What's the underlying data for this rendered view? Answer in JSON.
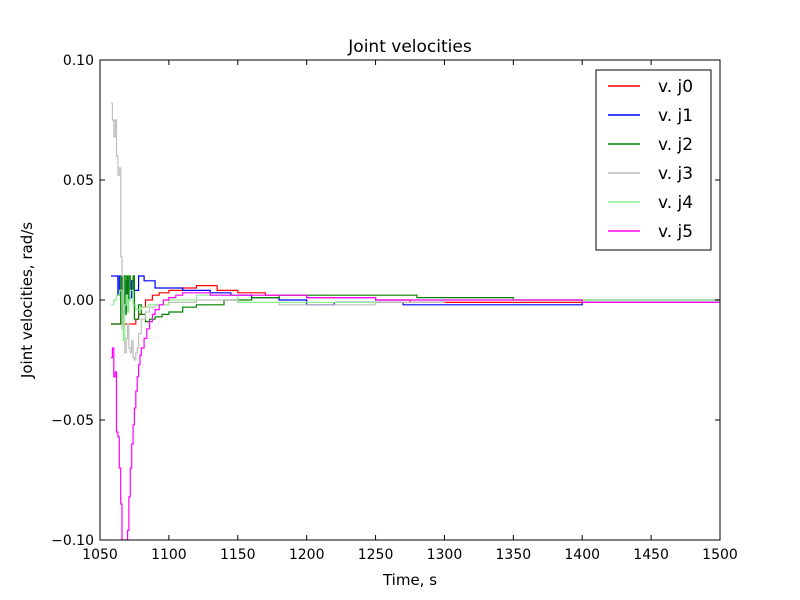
{
  "chart_data": {
    "type": "line",
    "title": "Joint velocities",
    "xlabel": "Time, s",
    "ylabel": "Joint velocities, rad/s",
    "xlim": [
      1050,
      1500
    ],
    "ylim": [
      -0.1,
      0.1
    ],
    "xticks": [
      1050,
      1100,
      1150,
      1200,
      1250,
      1300,
      1350,
      1400,
      1450,
      1500
    ],
    "xtick_labels": [
      "1050",
      "1100",
      "1150",
      "1200",
      "1250",
      "1300",
      "1350",
      "1400",
      "1450",
      "1500"
    ],
    "yticks": [
      -0.1,
      -0.05,
      0.0,
      0.05,
      0.1
    ],
    "ytick_labels": [
      "−0.10",
      "−0.05",
      "0.00",
      "0.05",
      "0.10"
    ],
    "grid": false,
    "legend_position": "top-right",
    "series": [
      {
        "name": "v. j0",
        "color": "#ff0000",
        "x": [
          1058,
          1060,
          1064,
          1066,
          1067,
          1068,
          1074,
          1076,
          1078,
          1080,
          1083,
          1088,
          1093,
          1100,
          1110,
          1120,
          1135,
          1150,
          1170,
          1190,
          1200,
          1225,
          1250,
          1275,
          1300,
          1350,
          1400,
          1450,
          1500
        ],
        "y": [
          -0.01,
          -0.01,
          -0.01,
          -0.002,
          -0.01,
          -0.01,
          -0.01,
          -0.008,
          -0.006,
          -0.003,
          0.0,
          0.002,
          0.003,
          0.004,
          0.005,
          0.006,
          0.004,
          0.003,
          0.002,
          0.002,
          0.001,
          0.001,
          0.0,
          -0.001,
          -0.001,
          -0.001,
          -0.001,
          -0.001,
          -0.001
        ]
      },
      {
        "name": "v. j1",
        "color": "#0000ff",
        "x": [
          1058,
          1060,
          1062,
          1063,
          1064,
          1066,
          1067,
          1069,
          1071,
          1073,
          1075,
          1078,
          1082,
          1090,
          1100,
          1110,
          1120,
          1130,
          1145,
          1160,
          1180,
          1200,
          1220,
          1250,
          1270,
          1300,
          1350,
          1400,
          1450,
          1500
        ],
        "y": [
          0.01,
          0.01,
          0.01,
          0.002,
          0.01,
          0.004,
          -0.005,
          0.008,
          0.001,
          0.008,
          0.004,
          0.01,
          0.008,
          0.005,
          0.005,
          0.004,
          0.004,
          0.003,
          0.002,
          0.001,
          0.0,
          -0.002,
          -0.001,
          -0.001,
          -0.002,
          -0.002,
          -0.002,
          -0.001,
          -0.001,
          -0.001
        ]
      },
      {
        "name": "v. j2",
        "color": "#008000",
        "x": [
          1058,
          1062,
          1064,
          1065,
          1066,
          1067,
          1068,
          1069,
          1070,
          1071,
          1072,
          1074,
          1075,
          1078,
          1080,
          1083,
          1086,
          1090,
          1095,
          1100,
          1110,
          1120,
          1140,
          1160,
          1180,
          1200,
          1230,
          1250,
          1280,
          1300,
          1330,
          1350,
          1400,
          1450,
          1500
        ],
        "y": [
          -0.01,
          -0.01,
          -0.01,
          0.01,
          -0.01,
          0.01,
          -0.006,
          0.01,
          -0.004,
          0.01,
          0.004,
          0.01,
          -0.008,
          -0.002,
          -0.006,
          -0.009,
          -0.008,
          -0.007,
          -0.006,
          -0.005,
          -0.003,
          -0.002,
          0.0,
          0.001,
          0.002,
          0.002,
          0.002,
          0.002,
          0.001,
          0.001,
          0.001,
          0.0,
          0.0,
          0.0,
          0.0
        ]
      },
      {
        "name": "v. j3",
        "color": "#bfbfbf",
        "x": [
          1058,
          1059,
          1060,
          1061,
          1062,
          1063,
          1064,
          1065,
          1066,
          1067,
          1068,
          1069,
          1070,
          1071,
          1072,
          1073,
          1074,
          1075,
          1076,
          1077,
          1078,
          1080,
          1083,
          1086,
          1090,
          1100,
          1120,
          1150,
          1180,
          1200,
          1250,
          1300,
          1350,
          1400,
          1450,
          1500
        ],
        "y": [
          0.082,
          0.075,
          0.068,
          0.075,
          0.06,
          0.052,
          0.055,
          0.018,
          0.01,
          -0.015,
          -0.022,
          -0.016,
          -0.01,
          -0.02,
          -0.022,
          -0.017,
          -0.024,
          -0.025,
          -0.022,
          -0.02,
          -0.014,
          -0.008,
          -0.005,
          -0.003,
          -0.002,
          -0.001,
          0.0,
          -0.001,
          -0.002,
          -0.002,
          -0.001,
          0.0,
          0.0,
          0.0,
          0.0,
          0.0
        ]
      },
      {
        "name": "v. j4",
        "color": "#90ee90",
        "x": [
          1058,
          1060,
          1062,
          1064,
          1066,
          1067,
          1068,
          1069,
          1070,
          1071,
          1072,
          1074,
          1076,
          1080,
          1085,
          1090,
          1100,
          1120,
          1150,
          1200,
          1250,
          1300,
          1350,
          1400,
          1450,
          1500
        ],
        "y": [
          -0.002,
          0.0,
          0.002,
          0.004,
          -0.012,
          -0.017,
          -0.002,
          0.002,
          -0.005,
          0.0,
          0.004,
          -0.002,
          -0.004,
          -0.003,
          -0.002,
          -0.002,
          0.0,
          0.002,
          -0.001,
          -0.001,
          0.0,
          0.0,
          0.0,
          0.0,
          0.0,
          0.0
        ]
      },
      {
        "name": "v. j5",
        "color": "#ff00ff",
        "x": [
          1058,
          1059,
          1060,
          1061,
          1062,
          1063,
          1064,
          1065,
          1066,
          1067,
          1068,
          1069,
          1070,
          1071,
          1072,
          1073,
          1074,
          1075,
          1076,
          1077,
          1078,
          1079,
          1080,
          1082,
          1084,
          1086,
          1088,
          1090,
          1093,
          1096,
          1100,
          1105,
          1110,
          1120,
          1130,
          1150,
          1200,
          1250,
          1300,
          1350,
          1400,
          1450,
          1500
        ],
        "y": [
          -0.024,
          -0.02,
          -0.032,
          -0.03,
          -0.055,
          -0.057,
          -0.07,
          -0.085,
          -0.1,
          -0.1,
          -0.1,
          -0.1,
          -0.096,
          -0.082,
          -0.07,
          -0.06,
          -0.052,
          -0.045,
          -0.038,
          -0.032,
          -0.027,
          -0.023,
          -0.02,
          -0.016,
          -0.012,
          -0.009,
          -0.006,
          -0.004,
          -0.002,
          0.0,
          0.001,
          0.002,
          0.003,
          0.003,
          0.002,
          0.002,
          0.001,
          0.0,
          0.0,
          0.0,
          -0.001,
          -0.001,
          -0.001
        ]
      }
    ]
  }
}
